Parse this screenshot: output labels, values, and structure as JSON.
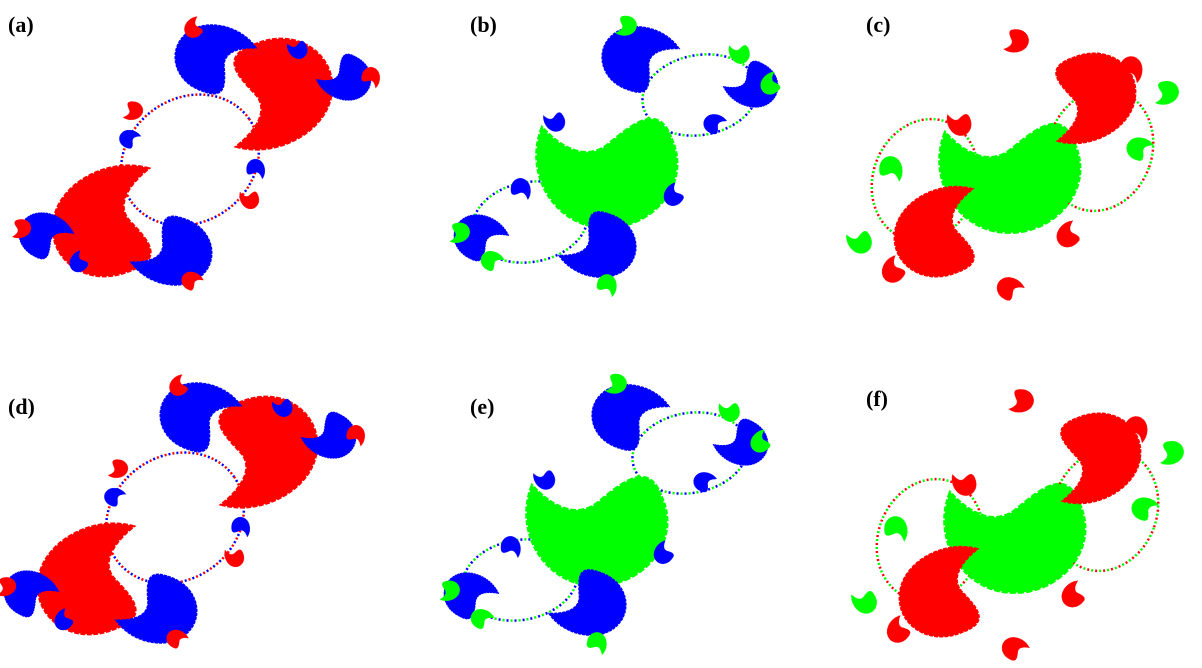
{
  "labels": [
    "(a)",
    "(b)",
    "(c)",
    "(d)",
    "(e)",
    "(f)"
  ]
}
